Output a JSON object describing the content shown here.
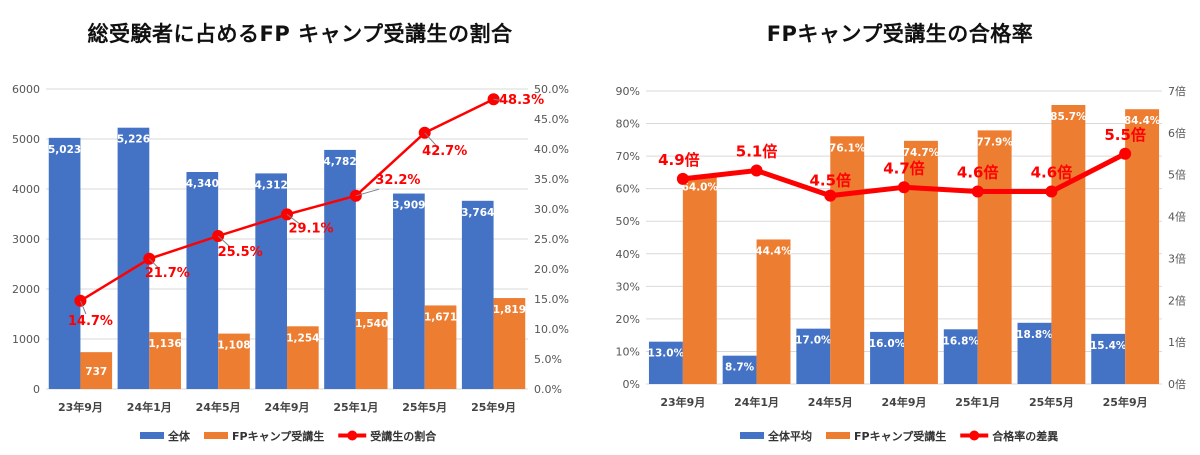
{
  "charts": {
    "left": {
      "title": "総受験者に占めるFP キャンプ受講生の割合",
      "type": "bar+line",
      "categories": [
        "23年9月",
        "24年1月",
        "24年5月",
        "24年9月",
        "25年1月",
        "25年5月",
        "25年9月"
      ],
      "series": [
        {
          "name": "全体",
          "values": [
            5023,
            5226,
            4340,
            4312,
            4782,
            3909,
            3764
          ],
          "labels": [
            "5,023",
            "5,226",
            "4,340",
            "4,312",
            "4,782",
            "3,909",
            "3,764"
          ],
          "color": "#4472c4"
        },
        {
          "name": "FPキャンプ受講生",
          "values": [
            737,
            1136,
            1108,
            1254,
            1540,
            1671,
            1819
          ],
          "labels": [
            "737",
            "1,136",
            "1,108",
            "1,254",
            "1,540",
            "1,671",
            "1,819"
          ],
          "color": "#ed7d31"
        },
        {
          "name": "受講生の割合",
          "values": [
            14.7,
            21.7,
            25.5,
            29.1,
            32.2,
            42.7,
            48.3
          ],
          "labels": [
            "14.7%",
            "21.7%",
            "25.5%",
            "29.1%",
            "32.2%",
            "42.7%",
            "48.3%"
          ],
          "color": "#ff0000"
        }
      ],
      "y_left": {
        "min": 0,
        "max": 6000,
        "ticks": [
          "0",
          "1000",
          "2000",
          "3000",
          "4000",
          "5000",
          "6000"
        ]
      },
      "y_right": {
        "min": 0,
        "max": 50,
        "ticks": [
          "0.0%",
          "5.0%",
          "10.0%",
          "15.0%",
          "20.0%",
          "25.0%",
          "30.0%",
          "35.0%",
          "40.0%",
          "45.0%",
          "50.0%"
        ]
      }
    },
    "right": {
      "title": "FPキャンプ受講生の合格率",
      "type": "bar+line",
      "categories": [
        "23年9月",
        "24年1月",
        "24年5月",
        "24年9月",
        "25年1月",
        "25年5月",
        "25年9月"
      ],
      "series": [
        {
          "name": "全体平均",
          "values": [
            13.0,
            8.7,
            17.0,
            16.0,
            16.8,
            18.8,
            15.4
          ],
          "labels": [
            "13.0%",
            "8.7%",
            "17.0%",
            "16.0%",
            "16.8%",
            "18.8%",
            "15.4%"
          ],
          "color": "#4472c4"
        },
        {
          "name": "FPキャンプ受講生",
          "values": [
            64.0,
            44.4,
            76.1,
            74.7,
            77.9,
            85.7,
            84.4
          ],
          "labels": [
            "64.0%",
            "44.4%",
            "76.1%",
            "74.7%",
            "77.9%",
            "85.7%",
            "84.4%"
          ],
          "color": "#ed7d31"
        },
        {
          "name": "合格率の差異",
          "values": [
            4.9,
            5.1,
            4.5,
            4.7,
            4.6,
            4.6,
            5.5
          ],
          "labels": [
            "4.9倍",
            "5.1倍",
            "4.5倍",
            "4.7倍",
            "4.6倍",
            "4.6倍",
            "5.5倍"
          ],
          "color": "#ff0000"
        }
      ],
      "y_left": {
        "min": 0,
        "max": 90,
        "ticks": [
          "0%",
          "10%",
          "20%",
          "30%",
          "40%",
          "50%",
          "60%",
          "70%",
          "80%",
          "90%"
        ]
      },
      "y_right": {
        "min": 0,
        "max": 7,
        "ticks": [
          "0倍",
          "1倍",
          "2倍",
          "3倍",
          "4倍",
          "5倍",
          "6倍",
          "7倍"
        ]
      }
    }
  }
}
